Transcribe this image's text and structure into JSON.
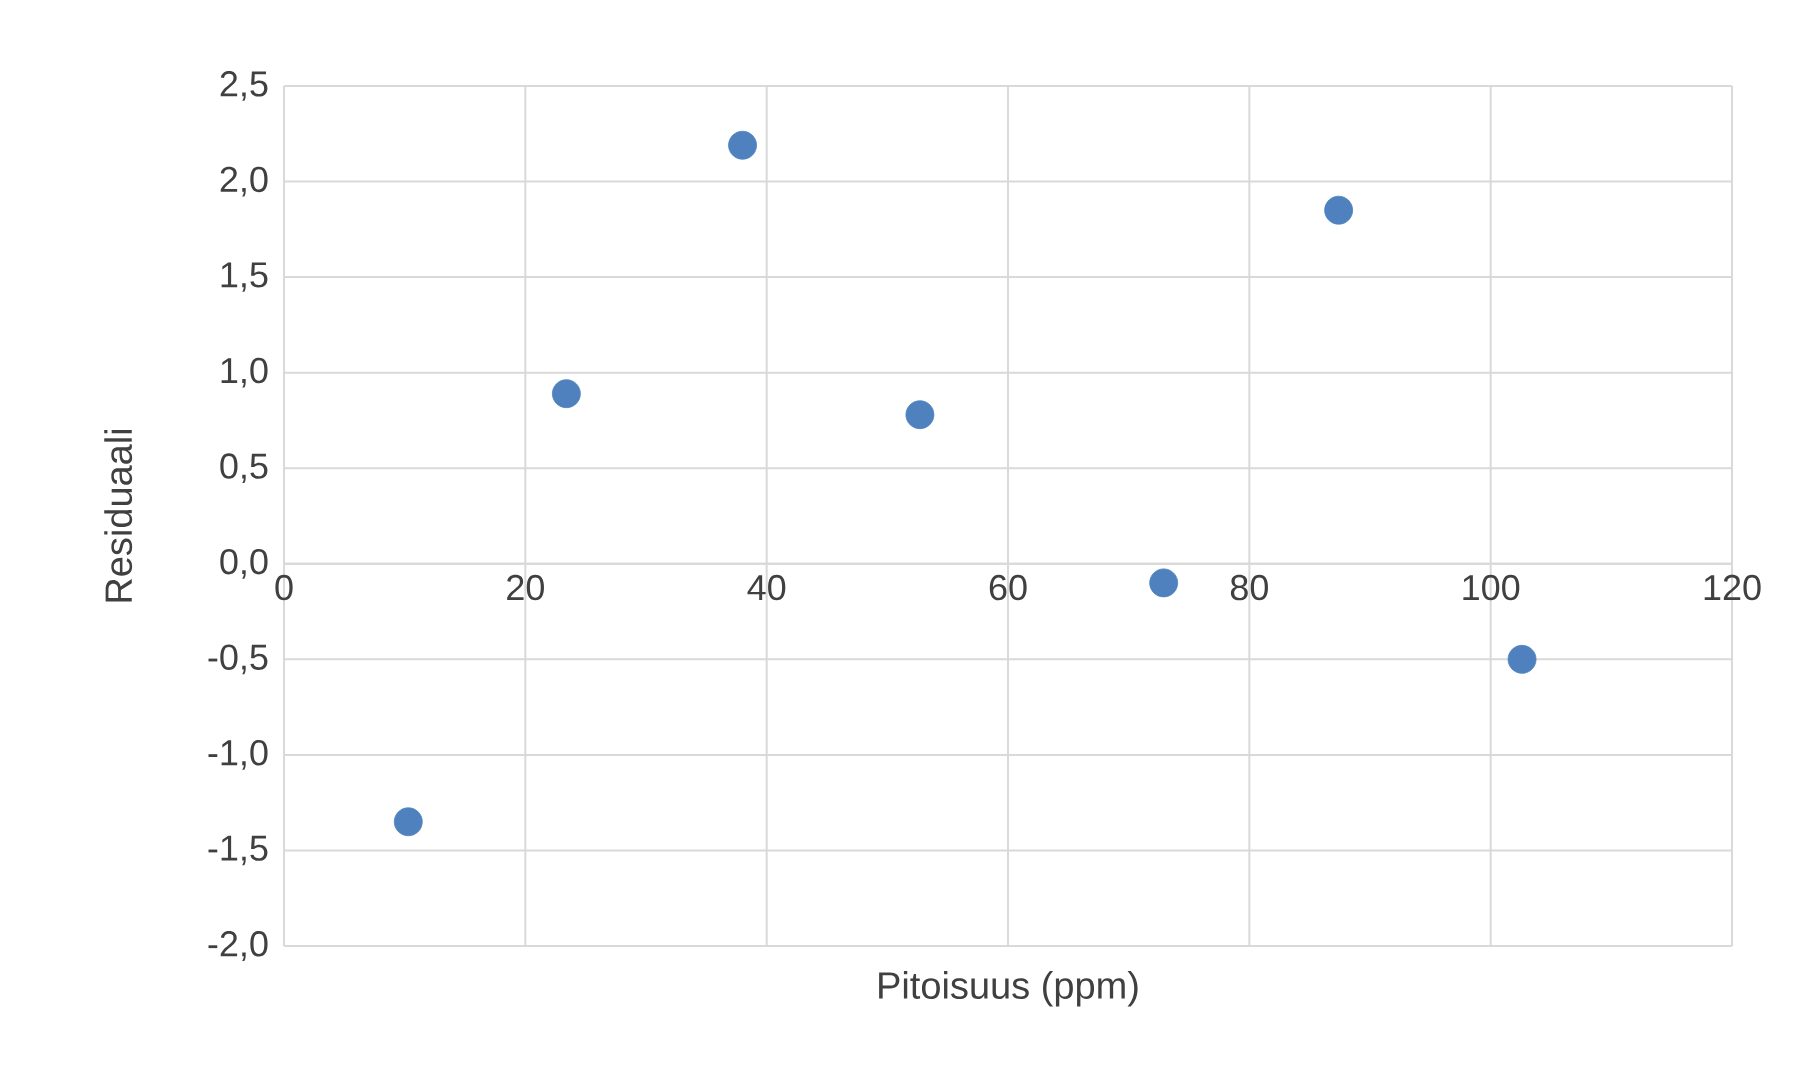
{
  "chart_data": {
    "type": "scatter",
    "xlabel": "Pitoisuus (ppm)",
    "ylabel": "Residuaali",
    "x": [
      10.3,
      23.4,
      38.0,
      52.7,
      72.9,
      87.4,
      102.6
    ],
    "values": [
      -1.35,
      0.89,
      2.19,
      0.78,
      -0.1,
      1.85,
      -0.5
    ],
    "color": "#4e81bd",
    "marker": "circle",
    "grid": true,
    "xlim": [
      0,
      120
    ],
    "ylim": [
      -2.0,
      2.5
    ],
    "xticks": [
      0,
      20,
      40,
      60,
      80,
      100,
      120
    ],
    "yticks": [
      {
        "value": -2.0,
        "label": "-2,0"
      },
      {
        "value": -1.5,
        "label": "-1,5"
      },
      {
        "value": -1.0,
        "label": "-1,0"
      },
      {
        "value": -0.5,
        "label": "-0,5"
      },
      {
        "value": 0.0,
        "label": "0,0"
      },
      {
        "value": 0.5,
        "label": "0,5"
      },
      {
        "value": 1.0,
        "label": "1,0"
      },
      {
        "value": 1.5,
        "label": "1,5"
      },
      {
        "value": 2.0,
        "label": "2,0"
      },
      {
        "value": 2.5,
        "label": "2,5"
      }
    ]
  }
}
